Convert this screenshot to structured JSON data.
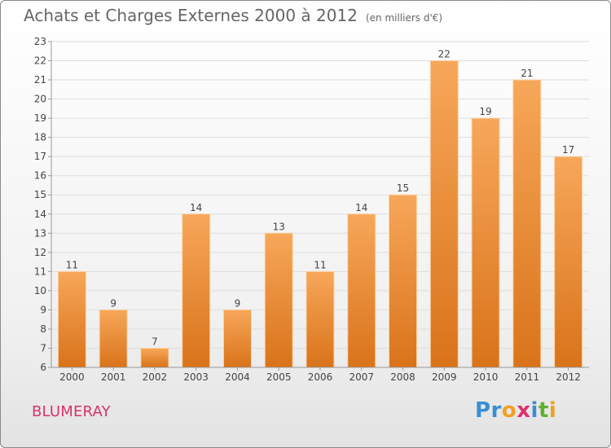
{
  "title": "Achats et Charges Externes 2000 à 2012",
  "subtitle": "(en milliers d'€)",
  "commune": "BLUMERAY",
  "logo": {
    "text": "Proxiti",
    "letters": [
      {
        "ch": "P",
        "color": "#3a8fd4"
      },
      {
        "ch": "r",
        "color": "#3a8fd4"
      },
      {
        "ch": "o",
        "color": "#f0a020"
      },
      {
        "ch": "x",
        "color": "#e03070"
      },
      {
        "ch": "i",
        "color": "#3a8fd4"
      },
      {
        "ch": "t",
        "color": "#60b030"
      },
      {
        "ch": "i",
        "color": "#f0a020"
      }
    ]
  },
  "colors": {
    "bar_top": "#f7a75a",
    "bar_bottom": "#d9731a",
    "axis_text": "#444444",
    "grid": "#dddddd",
    "commune": "#d6336c"
  },
  "chart_data": {
    "type": "bar",
    "categories": [
      "2000",
      "2001",
      "2002",
      "2003",
      "2004",
      "2005",
      "2006",
      "2007",
      "2008",
      "2009",
      "2010",
      "2011",
      "2012"
    ],
    "values": [
      11,
      9,
      7,
      14,
      9,
      13,
      11,
      14,
      15,
      22,
      19,
      21,
      17
    ],
    "ylim": [
      6,
      23
    ],
    "yticks": [
      6,
      7,
      8,
      9,
      10,
      11,
      12,
      13,
      14,
      15,
      16,
      17,
      18,
      19,
      20,
      21,
      22,
      23
    ],
    "grid": true,
    "data_labels": true
  }
}
